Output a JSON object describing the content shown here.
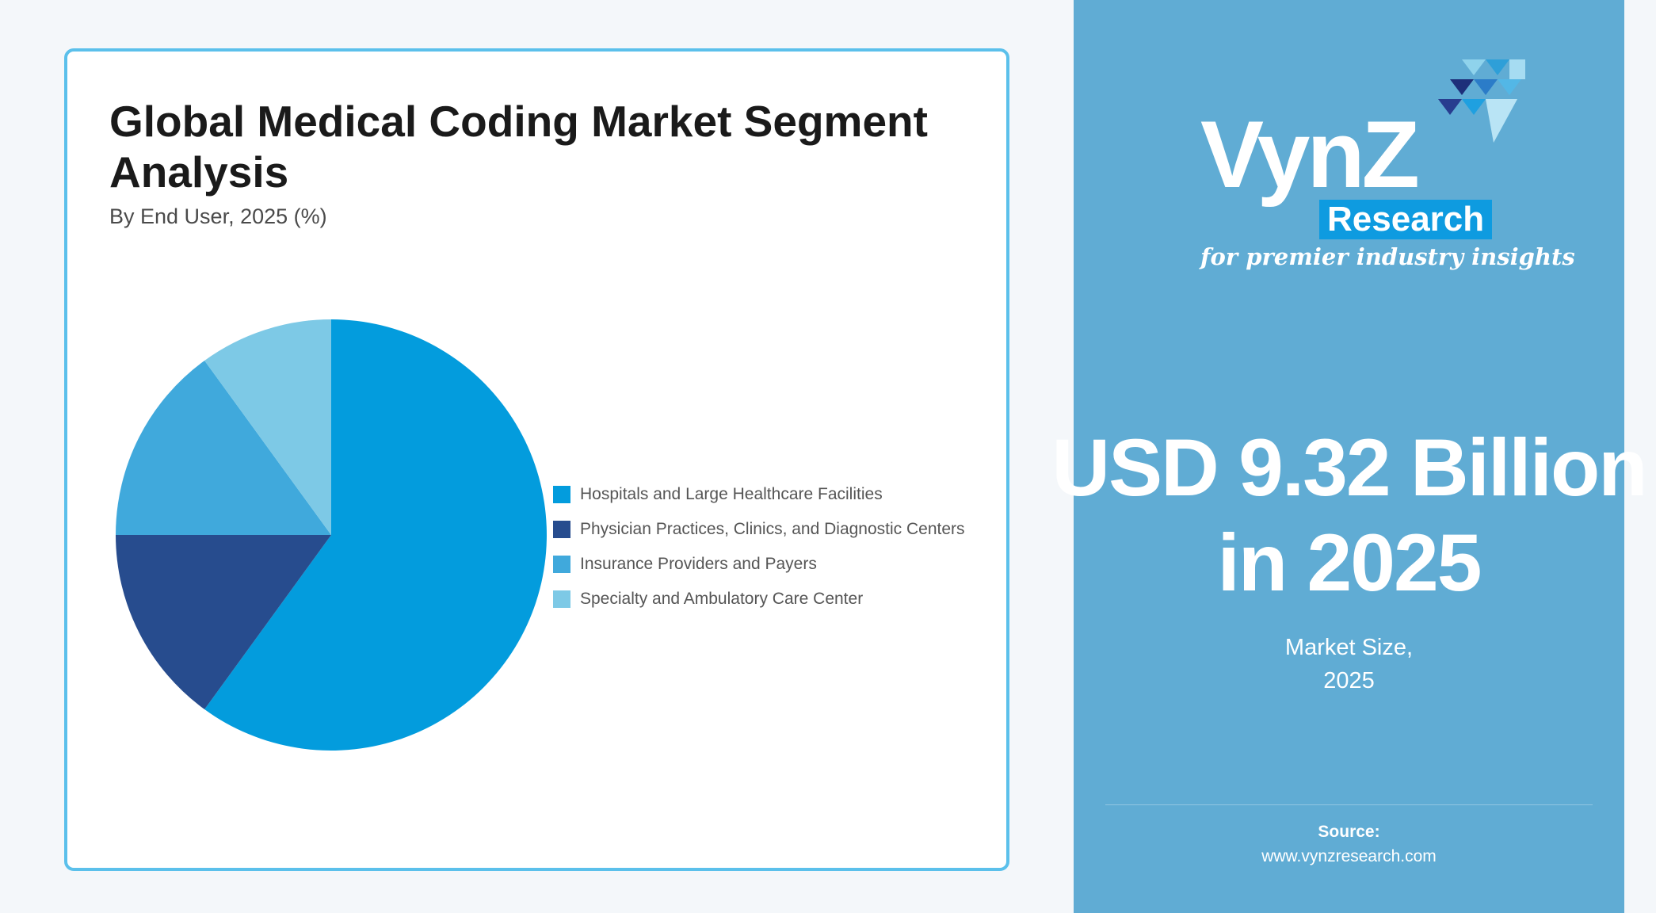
{
  "card": {
    "title": "Global Medical Coding Market Segment Analysis",
    "subtitle": "By End User, 2025 (%)"
  },
  "chart_data": {
    "type": "pie",
    "title": "Global Medical Coding Market Segment Analysis",
    "subtitle": "By End User, 2025 (%)",
    "categories": [
      "Hospitals and Large Healthcare Facilities",
      "Physician Practices, Clinics, and Diagnostic Centers",
      "Insurance Providers and Payers",
      "Specialty and Ambulatory Care Center"
    ],
    "values": [
      60,
      15,
      15,
      10
    ],
    "colors": [
      "#039cdd",
      "#274c8e",
      "#40a9dc",
      "#7dc9e6"
    ],
    "legend_position": "right"
  },
  "panel": {
    "logo_text": "VynZ",
    "logo_sub": "Research",
    "tagline": "for premier industry insights",
    "market_value": "USD 9.32 Billion\nin 2025",
    "caption": "Market Size,\n2025",
    "source_label": "Source:",
    "source_url": "www.vynzresearch.com"
  }
}
